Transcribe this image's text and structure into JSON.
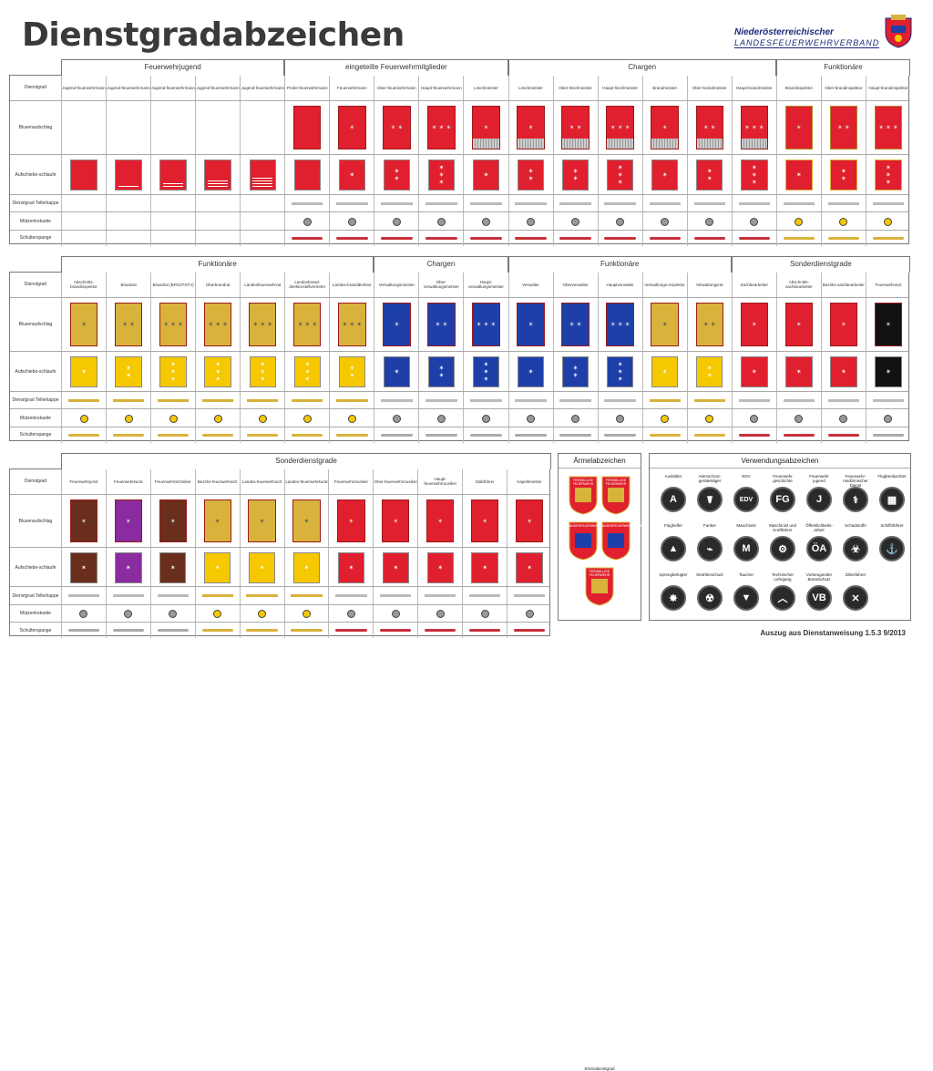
{
  "header": {
    "title": "Dienstgradabzeichen",
    "org_line1": "Niederösterreichischer",
    "org_line2": "LANDESFEUERWEHRVERBAND"
  },
  "row_labels": [
    "Dienstgrad",
    "Blusenaufschlag",
    "Aufschiebe-schlaufe",
    "Dienstgrad Tellerkappe",
    "Mützenkokarde",
    "Schulterspange"
  ],
  "colors": {
    "red": "#e0202e",
    "blue": "#1f3fa8",
    "gold": "#d8b23a",
    "yellow": "#f5c800",
    "purple": "#8a2ba0",
    "brown": "#6a2e1c",
    "black": "#111111",
    "white": "#ffffff"
  },
  "table1": {
    "groups": [
      {
        "label": "Feuerwehrjugend",
        "span": 5
      },
      {
        "label": "eingeteilte Feuerwehrmitglieder",
        "span": 5
      },
      {
        "label": "Chargen",
        "span": 6
      },
      {
        "label": "Funktionäre",
        "span": 3
      }
    ],
    "columns": [
      {
        "name": "Jugend-feuerwehrmann",
        "bluse": null,
        "schlaufe": {
          "bg": "#e0202e",
          "stars": 0,
          "stripes": 0
        }
      },
      {
        "name": "Jugend-feuerwehrmann",
        "bluse": null,
        "schlaufe": {
          "bg": "#e0202e",
          "stars": 0,
          "stripes": 1
        }
      },
      {
        "name": "Jugend-feuerwehrmann",
        "bluse": null,
        "schlaufe": {
          "bg": "#e0202e",
          "stars": 0,
          "stripes": 2
        }
      },
      {
        "name": "Jugend-feuerwehrmann",
        "bluse": null,
        "schlaufe": {
          "bg": "#e0202e",
          "stars": 0,
          "stripes": 3
        }
      },
      {
        "name": "Jugend-feuerwehrmann",
        "bluse": null,
        "schlaufe": {
          "bg": "#e0202e",
          "stars": 0,
          "stripes": 4
        }
      },
      {
        "name": "Probe-feuerwehrmann",
        "bluse": {
          "bg": "#e0202e",
          "stars": 0
        },
        "schlaufe": {
          "bg": "#e0202e",
          "stars": 0,
          "stripes": 0
        }
      },
      {
        "name": "Feuerwehrmann",
        "bluse": {
          "bg": "#e0202e",
          "stars": 1
        },
        "schlaufe": {
          "bg": "#e0202e",
          "stars": 1,
          "stripes": 0
        }
      },
      {
        "name": "Ober-feuerwehrmann",
        "bluse": {
          "bg": "#e0202e",
          "stars": 2
        },
        "schlaufe": {
          "bg": "#e0202e",
          "stars": 2,
          "stripes": 0
        }
      },
      {
        "name": "Haupt-feuerwehrmann",
        "bluse": {
          "bg": "#e0202e",
          "stars": 3
        },
        "schlaufe": {
          "bg": "#e0202e",
          "stars": 3,
          "stripes": 0
        }
      },
      {
        "name": "Löschmeister",
        "bluse": {
          "bg": "#e0202e",
          "stars": 1,
          "band": true
        },
        "schlaufe": {
          "bg": "#e0202e",
          "stars": 1,
          "stripes": 0
        }
      },
      {
        "name": "Löschmeister",
        "bluse": {
          "bg": "#e0202e",
          "stars": 1,
          "band": true
        },
        "schlaufe": {
          "bg": "#e0202e",
          "stars": 2,
          "stripes": 0
        }
      },
      {
        "name": "Ober-löschmeister",
        "bluse": {
          "bg": "#e0202e",
          "stars": 2,
          "band": true
        },
        "schlaufe": {
          "bg": "#e0202e",
          "stars": 2,
          "stripes": 0
        }
      },
      {
        "name": "Haupt-löschmeister",
        "bluse": {
          "bg": "#e0202e",
          "stars": 3,
          "band": true
        },
        "schlaufe": {
          "bg": "#e0202e",
          "stars": 3,
          "stripes": 0
        }
      },
      {
        "name": "Brandmeister",
        "bluse": {
          "bg": "#e0202e",
          "stars": 1,
          "band": true
        },
        "schlaufe": {
          "bg": "#e0202e",
          "stars": 1,
          "stripes": 0
        }
      },
      {
        "name": "Ober-brandmeister",
        "bluse": {
          "bg": "#e0202e",
          "stars": 2,
          "band": true
        },
        "schlaufe": {
          "bg": "#e0202e",
          "stars": 2,
          "stripes": 0
        }
      },
      {
        "name": "Haupt-brandmeister",
        "bluse": {
          "bg": "#e0202e",
          "stars": 3,
          "band": true
        },
        "schlaufe": {
          "bg": "#e0202e",
          "stars": 3,
          "stripes": 0
        }
      },
      {
        "name": "Brandinspektor",
        "bluse": {
          "bg": "#e0202e",
          "stars": 1,
          "gold": true
        },
        "schlaufe": {
          "bg": "#e0202e",
          "stars": 1,
          "stripes": 0,
          "gold": true
        }
      },
      {
        "name": "Ober-brandinspektor",
        "bluse": {
          "bg": "#e0202e",
          "stars": 2,
          "gold": true
        },
        "schlaufe": {
          "bg": "#e0202e",
          "stars": 2,
          "stripes": 0,
          "gold": true
        }
      },
      {
        "name": "Haupt-brandinspektor",
        "bluse": {
          "bg": "#e0202e",
          "stars": 3,
          "gold": true
        },
        "schlaufe": {
          "bg": "#e0202e",
          "stars": 3,
          "stripes": 0,
          "gold": true
        }
      }
    ]
  },
  "table2": {
    "groups": [
      {
        "label": "Funktionäre",
        "span": 7
      },
      {
        "label": "Chargen",
        "span": 3
      },
      {
        "label": "Funktionäre",
        "span": 5
      },
      {
        "label": "Sonderdienstgrade",
        "span": 4
      }
    ],
    "columns": [
      {
        "name": "Abschnitts-brandinspektor",
        "bluse": {
          "bg": "#d8b23a",
          "stars": 1
        },
        "schlaufe": {
          "bg": "#f5c800",
          "stars": 1
        }
      },
      {
        "name": "Brandrat",
        "bluse": {
          "bg": "#d8b23a",
          "stars": 2
        },
        "schlaufe": {
          "bg": "#f5c800",
          "stars": 2
        }
      },
      {
        "name": "Brandrat (BFKDTSTV)",
        "bluse": {
          "bg": "#d8b23a",
          "stars": 3
        },
        "schlaufe": {
          "bg": "#f5c800",
          "stars": 3
        }
      },
      {
        "name": "Oberbrandrat",
        "bluse": {
          "bg": "#d8b23a",
          "stars": 3
        },
        "schlaufe": {
          "bg": "#f5c800",
          "stars": 3
        }
      },
      {
        "name": "Landesfeuerwehrrat",
        "bluse": {
          "bg": "#d8b23a",
          "stars": 3
        },
        "schlaufe": {
          "bg": "#f5c800",
          "stars": 3
        }
      },
      {
        "name": "Landesbrand-direktorstellvertreter",
        "bluse": {
          "bg": "#d8b23a",
          "stars": 3
        },
        "schlaufe": {
          "bg": "#f5c800",
          "stars": 3
        }
      },
      {
        "name": "Landes-branddirektor",
        "bluse": {
          "bg": "#d8b23a",
          "stars": 3
        },
        "schlaufe": {
          "bg": "#f5c800",
          "stars": 2
        }
      },
      {
        "name": "Verwaltungsmeister",
        "bluse": {
          "bg": "#1f3fa8",
          "stars": 1
        },
        "schlaufe": {
          "bg": "#1f3fa8",
          "stars": 1
        }
      },
      {
        "name": "Ober-verwaltungsmeister",
        "bluse": {
          "bg": "#1f3fa8",
          "stars": 2
        },
        "schlaufe": {
          "bg": "#1f3fa8",
          "stars": 2
        }
      },
      {
        "name": "Haupt-verwaltungsmeister",
        "bluse": {
          "bg": "#1f3fa8",
          "stars": 3
        },
        "schlaufe": {
          "bg": "#1f3fa8",
          "stars": 3
        }
      },
      {
        "name": "Verwalter",
        "bluse": {
          "bg": "#1f3fa8",
          "stars": 1
        },
        "schlaufe": {
          "bg": "#1f3fa8",
          "stars": 1
        }
      },
      {
        "name": "Oberverwalter",
        "bluse": {
          "bg": "#1f3fa8",
          "stars": 2
        },
        "schlaufe": {
          "bg": "#1f3fa8",
          "stars": 2
        }
      },
      {
        "name": "Hauptverwalter",
        "bluse": {
          "bg": "#1f3fa8",
          "stars": 3
        },
        "schlaufe": {
          "bg": "#1f3fa8",
          "stars": 3
        }
      },
      {
        "name": "Verwaltungs-inspektor",
        "bluse": {
          "bg": "#d8b23a",
          "stars": 1
        },
        "schlaufe": {
          "bg": "#f5c800",
          "stars": 1
        }
      },
      {
        "name": "Verwaltungsrat",
        "bluse": {
          "bg": "#d8b23a",
          "stars": 2
        },
        "schlaufe": {
          "bg": "#f5c800",
          "stars": 2
        }
      },
      {
        "name": "Sachbearbeiter",
        "bluse": {
          "bg": "#e0202e",
          "stars": 1
        },
        "schlaufe": {
          "bg": "#e0202e",
          "stars": 1
        }
      },
      {
        "name": "Abschnitts-sachbearbeiter",
        "bluse": {
          "bg": "#e0202e",
          "stars": 1
        },
        "schlaufe": {
          "bg": "#e0202e",
          "stars": 1
        }
      },
      {
        "name": "Bezirks-sachbearbeiter",
        "bluse": {
          "bg": "#e0202e",
          "stars": 1
        },
        "schlaufe": {
          "bg": "#e0202e",
          "stars": 1
        }
      },
      {
        "name": "Feuerwehrarzt",
        "bluse": {
          "bg": "#111111",
          "stars": 1
        },
        "schlaufe": {
          "bg": "#111111",
          "stars": 1
        }
      }
    ]
  },
  "table3": {
    "groups": [
      {
        "label": "Sonderdienstgrade",
        "span": 11
      }
    ],
    "columns": [
      {
        "name": "Feuerwehrjurist",
        "bluse": {
          "bg": "#6a2e1c",
          "stars": 1
        },
        "schlaufe": {
          "bg": "#6a2e1c",
          "stars": 1
        }
      },
      {
        "name": "Feuerwehrkurat",
        "bluse": {
          "bg": "#8a2ba0",
          "stars": 1
        },
        "schlaufe": {
          "bg": "#8a2ba0",
          "stars": 1
        }
      },
      {
        "name": "Feuerwehrtechniker",
        "bluse": {
          "bg": "#6a2e1c",
          "stars": 1
        },
        "schlaufe": {
          "bg": "#6a2e1c",
          "stars": 1
        }
      },
      {
        "name": "Bezirks-feuerwehrarzt",
        "bluse": {
          "bg": "#d8b23a",
          "stars": 1
        },
        "schlaufe": {
          "bg": "#f5c800",
          "stars": 1
        }
      },
      {
        "name": "Landes-feuerwehrarzt",
        "bluse": {
          "bg": "#d8b23a",
          "stars": 1
        },
        "schlaufe": {
          "bg": "#f5c800",
          "stars": 1
        }
      },
      {
        "name": "Landes-feuerwehrkurat",
        "bluse": {
          "bg": "#d8b23a",
          "stars": 1
        },
        "schlaufe": {
          "bg": "#f5c800",
          "stars": 1
        }
      },
      {
        "name": "Feuerwehrmusiker",
        "bluse": {
          "bg": "#e0202e",
          "stars": 1
        },
        "schlaufe": {
          "bg": "#e0202e",
          "stars": 1
        }
      },
      {
        "name": "Ober-feuerwehrmusiker",
        "bluse": {
          "bg": "#e0202e",
          "stars": 1
        },
        "schlaufe": {
          "bg": "#e0202e",
          "stars": 1
        }
      },
      {
        "name": "Haupt-feuerwehrmusiker",
        "bluse": {
          "bg": "#e0202e",
          "stars": 1
        },
        "schlaufe": {
          "bg": "#e0202e",
          "stars": 1
        }
      },
      {
        "name": "Stabführer",
        "bluse": {
          "bg": "#e0202e",
          "stars": 1
        },
        "schlaufe": {
          "bg": "#e0202e",
          "stars": 1
        }
      },
      {
        "name": "Kapellmeister",
        "bluse": {
          "bg": "#e0202e",
          "stars": 1
        },
        "schlaufe": {
          "bg": "#e0202e",
          "stars": 1
        }
      }
    ]
  },
  "armel": {
    "title": "Ärmelabzeichen",
    "badges": [
      "FREIWILLIGE FEUERWEHR",
      "FREIWILLIGE FEUERWEHR",
      "LANDESFEUERWEHRVERBAND",
      "LANDESFEUERWEHRVERBAND",
      "FREIWILLIGE FEUERWEHR"
    ],
    "caption": "Ehrendienstgrad"
  },
  "verwendung": {
    "title": "Verwendungsabzeichen",
    "items": [
      {
        "label": "Ausbilder",
        "glyph": "A"
      },
      {
        "label": "Atemschutz-geräteträger",
        "glyph": "☤"
      },
      {
        "label": "EDV",
        "glyph": "EDV"
      },
      {
        "label": "Feuerwehr geschichte",
        "glyph": "FG"
      },
      {
        "label": "Feuerwehr jugend",
        "glyph": "J"
      },
      {
        "label": "Feuerwehr-medizinischer Dienst",
        "glyph": "⚕"
      },
      {
        "label": "Flugbeobachter",
        "glyph": "▦"
      },
      {
        "label": "Flughelfer",
        "glyph": "▲"
      },
      {
        "label": "Funker",
        "glyph": "⌁"
      },
      {
        "label": "Maschinist",
        "glyph": "M"
      },
      {
        "label": "Maschinist und Kraftfahrer",
        "glyph": "⚙"
      },
      {
        "label": "Öffentlichkeits-arbeit",
        "glyph": "ÖA"
      },
      {
        "label": "Schadstoffe",
        "glyph": "☣"
      },
      {
        "label": "Schiffsführer",
        "glyph": "⚓"
      },
      {
        "label": "Sprengbefugter",
        "glyph": "✸"
      },
      {
        "label": "Strahlenschutz",
        "glyph": "☢"
      },
      {
        "label": "Taucher",
        "glyph": "▼"
      },
      {
        "label": "Technischer Lehrgang",
        "glyph": "︿"
      },
      {
        "label": "Vorbeugender Brandschutz",
        "glyph": "VB"
      },
      {
        "label": "Zillenfahrer",
        "glyph": "✕"
      }
    ]
  },
  "footer": "Auszug aus Dienstanweisung 1.5.3 9/2013"
}
